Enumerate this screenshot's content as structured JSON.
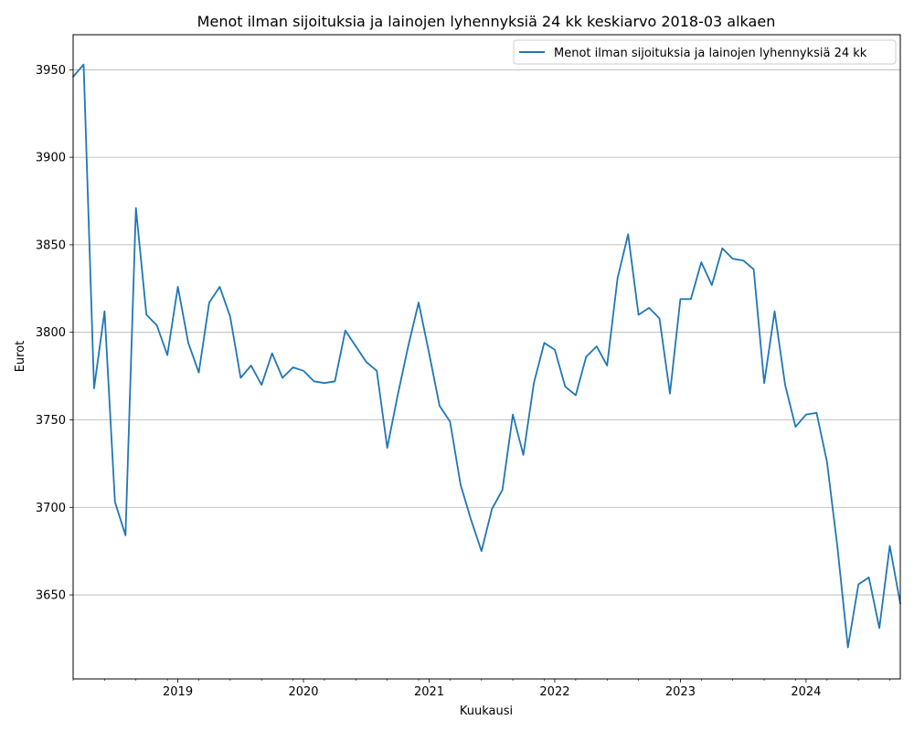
{
  "chart_data": {
    "type": "line",
    "title": "Menot ilman sijoituksia ja lainojen lyhennyksiä 24 kk keskiarvo 2018-03 alkaen",
    "xlabel": "Kuukausi",
    "ylabel": "Eurot",
    "x_start": "2018-03",
    "x_end": "2024-10",
    "ylim": [
      3602,
      3970
    ],
    "yticks": [
      3650,
      3700,
      3750,
      3800,
      3850,
      3900,
      3950
    ],
    "xticks": [
      {
        "label": "2019",
        "date": "2019-01"
      },
      {
        "label": "2020",
        "date": "2020-01"
      },
      {
        "label": "2021",
        "date": "2021-01"
      },
      {
        "label": "2022",
        "date": "2022-01"
      },
      {
        "label": "2023",
        "date": "2023-01"
      },
      {
        "label": "2024",
        "date": "2024-01"
      }
    ],
    "grid": "horizontal",
    "legend_position": "top-right",
    "series": [
      {
        "name": "Menot ilman sijoituksia ja lainojen lyhennyksiä 24 kk",
        "color": "#1f77b4",
        "x": [
          "2018-03",
          "2018-04",
          "2018-05",
          "2018-06",
          "2018-07",
          "2018-08",
          "2018-09",
          "2018-10",
          "2018-11",
          "2018-12",
          "2019-01",
          "2019-02",
          "2019-03",
          "2019-04",
          "2019-05",
          "2019-06",
          "2019-07",
          "2019-08",
          "2019-09",
          "2019-10",
          "2019-11",
          "2019-12",
          "2020-01",
          "2020-02",
          "2020-03",
          "2020-04",
          "2020-05",
          "2020-06",
          "2020-07",
          "2020-08",
          "2020-09",
          "2020-10",
          "2020-11",
          "2020-12",
          "2021-01",
          "2021-02",
          "2021-03",
          "2021-04",
          "2021-05",
          "2021-06",
          "2021-07",
          "2021-08",
          "2021-09",
          "2021-10",
          "2021-11",
          "2021-12",
          "2022-01",
          "2022-02",
          "2022-03",
          "2022-04",
          "2022-05",
          "2022-06",
          "2022-07",
          "2022-08",
          "2022-09",
          "2022-10",
          "2022-11",
          "2022-12",
          "2023-01",
          "2023-02",
          "2023-03",
          "2023-04",
          "2023-05",
          "2023-06",
          "2023-07",
          "2023-08",
          "2023-09",
          "2023-10",
          "2023-11",
          "2023-12",
          "2024-01",
          "2024-02",
          "2024-03",
          "2024-04",
          "2024-05",
          "2024-06",
          "2024-07",
          "2024-08",
          "2024-09",
          "2024-10"
        ],
        "values": [
          3946,
          3953,
          3768,
          3812,
          3703,
          3684,
          3871,
          3810,
          3804,
          3787,
          3826,
          3794,
          3777,
          3817,
          3826,
          3809,
          3774,
          3781,
          3770,
          3788,
          3774,
          3780,
          3778,
          3772,
          3771,
          3772,
          3801,
          3792,
          3783,
          3778,
          3734,
          3764,
          3792,
          3817,
          3788,
          3758,
          3749,
          3713,
          3693,
          3675,
          3699,
          3710,
          3753,
          3730,
          3771,
          3794,
          3790,
          3769,
          3764,
          3786,
          3792,
          3781,
          3831,
          3856,
          3810,
          3814,
          3808,
          3765,
          3819,
          3819,
          3840,
          3827,
          3848,
          3842,
          3841,
          3836,
          3771,
          3812,
          3770,
          3746,
          3753,
          3754,
          3726,
          3677,
          3620,
          3656,
          3660,
          3631,
          3678,
          3645
        ]
      }
    ]
  }
}
